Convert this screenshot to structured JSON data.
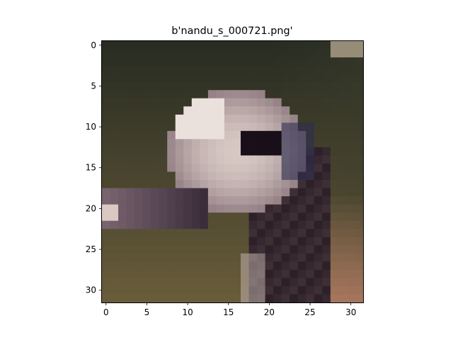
{
  "figure": {
    "title": "b'nandu_s_000721.png'",
    "image_description_icon": "ostrich-head-photo-icon"
  },
  "chart_data": {
    "type": "heatmap",
    "title": "b'nandu_s_000721.png'",
    "xlabel": "",
    "ylabel": "",
    "x_ticks": [
      0,
      5,
      10,
      15,
      20,
      25,
      30
    ],
    "y_ticks": [
      0,
      5,
      10,
      15,
      20,
      25,
      30
    ],
    "xlim": [
      -0.5,
      31.5
    ],
    "ylim": [
      31.5,
      -0.5
    ],
    "grid": false,
    "legend": "none"
  }
}
